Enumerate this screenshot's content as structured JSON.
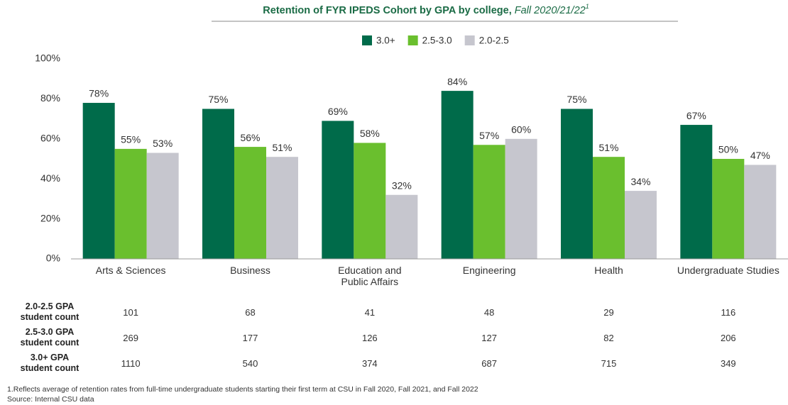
{
  "chart_data": {
    "type": "bar",
    "title": "Retention of FYR IPEDS Cohort by GPA by college,",
    "title_period": "Fall 2020/21/22",
    "title_footnote_mark": "1",
    "categories": [
      "Arts & Sciences",
      "Business",
      "Education and\nPublic Affairs",
      "Engineering",
      "Health",
      "Undergraduate Studies"
    ],
    "series": [
      {
        "name": "3.0+",
        "color": "#006b4a",
        "values": [
          78,
          75,
          69,
          84,
          75,
          67
        ],
        "value_labels": [
          "78%",
          "75%",
          "69%",
          "84%",
          "75%",
          "67%"
        ]
      },
      {
        "name": "2.5-3.0",
        "color": "#6abf2e",
        "values": [
          55,
          56,
          58,
          57,
          51,
          50
        ],
        "value_labels": [
          "55%",
          "56%",
          "58%",
          "57%",
          "51%",
          "50%"
        ]
      },
      {
        "name": "2.0-2.5",
        "color": "#c6c6ce",
        "values": [
          53,
          51,
          32,
          60,
          34,
          47
        ],
        "value_labels": [
          "53%",
          "51%",
          "32%",
          "60%",
          "34%",
          "47%"
        ]
      }
    ],
    "ylim": [
      0,
      100
    ],
    "yticks": [
      {
        "value": 0,
        "label": "0%"
      },
      {
        "value": 20,
        "label": "20%"
      },
      {
        "value": 40,
        "label": "40%"
      },
      {
        "value": 60,
        "label": "60%"
      },
      {
        "value": 80,
        "label": "80%"
      },
      {
        "value": 100,
        "label": "100%"
      }
    ],
    "grid": false,
    "legend": "top"
  },
  "table": {
    "rows": [
      {
        "label": "2.0-2.5 GPA\nstudent count",
        "values": [
          "101",
          "68",
          "41",
          "48",
          "29",
          "116"
        ]
      },
      {
        "label": "2.5-3.0 GPA\nstudent count",
        "values": [
          "269",
          "177",
          "126",
          "127",
          "82",
          "206"
        ]
      },
      {
        "label": "3.0+ GPA\nstudent count",
        "values": [
          "1110",
          "540",
          "374",
          "687",
          "715",
          "349"
        ]
      }
    ]
  },
  "notes": [
    "1.Reflects average of retention rates from full-time undergraduate students starting their first term at CSU in Fall 2020, Fall 2021, and Fall 2022",
    "Source: Internal CSU data"
  ]
}
